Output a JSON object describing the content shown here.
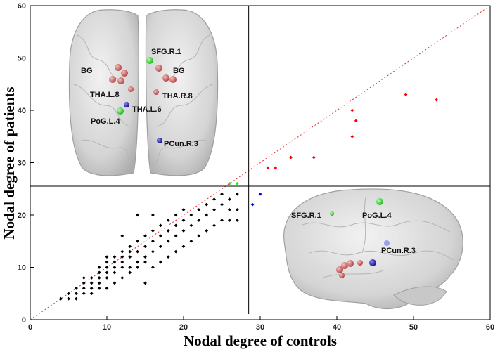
{
  "chart_data": {
    "type": "scatter",
    "x_label": "Nodal degree of controls",
    "y_label": "Nodal degree of patients",
    "xlim": [
      0,
      60
    ],
    "xticks": [
      0,
      10,
      20,
      30,
      40,
      50,
      60
    ],
    "ylim": [
      0,
      60
    ],
    "yticks": [
      0,
      10,
      20,
      30,
      40,
      50,
      60
    ],
    "reference_lines": {
      "x": 28.5,
      "y": 25.5
    },
    "series": [
      {
        "color": "#000000",
        "x": [
          4,
          5,
          5,
          6,
          6,
          6,
          7,
          7,
          7,
          7,
          8,
          8,
          8,
          8,
          9,
          9,
          9,
          9,
          9,
          10,
          10,
          10,
          10,
          10,
          10,
          11,
          11,
          11,
          11,
          11,
          12,
          12,
          12,
          12,
          12,
          13,
          13,
          13,
          13,
          13,
          14,
          14,
          14,
          14,
          15,
          15,
          15,
          15,
          15,
          16,
          16,
          16,
          16,
          17,
          17,
          17,
          17,
          18,
          18,
          18,
          18,
          19,
          19,
          19,
          19,
          20,
          20,
          20,
          20,
          21,
          21,
          21,
          22,
          22,
          22,
          23,
          23,
          23,
          24,
          24,
          24,
          25,
          25,
          25,
          26,
          26,
          26,
          27,
          27,
          27,
          14,
          12,
          16
        ],
        "y": [
          4,
          5,
          4,
          5,
          6,
          4,
          5,
          6,
          7,
          8,
          5,
          6,
          7,
          8,
          6,
          7,
          8,
          9,
          10,
          6,
          8,
          9,
          10,
          11,
          12,
          7,
          9,
          10,
          11,
          12,
          8,
          10,
          11,
          12,
          13,
          9,
          10,
          12,
          13,
          14,
          10,
          11,
          13,
          15,
          7,
          11,
          12,
          14,
          16,
          10,
          13,
          15,
          17,
          11,
          14,
          16,
          18,
          12,
          15,
          17,
          19,
          13,
          16,
          18,
          20,
          14,
          17,
          19,
          21,
          15,
          18,
          20,
          16,
          19,
          21,
          17,
          20,
          22,
          18,
          21,
          23,
          19,
          22,
          24,
          19,
          21,
          23,
          19,
          21,
          24,
          20,
          16,
          20
        ]
      },
      {
        "color": "#ff0000",
        "x": [
          31,
          32,
          34,
          37,
          42,
          42,
          42.5,
          49,
          53
        ],
        "y": [
          29,
          29,
          31,
          31,
          35,
          40,
          38,
          43,
          42
        ]
      },
      {
        "color": "#00ff00",
        "x": [
          26,
          27
        ],
        "y": [
          26,
          26
        ]
      },
      {
        "color": "#0000ff",
        "x": [
          29,
          30
        ],
        "y": [
          22,
          24
        ]
      }
    ],
    "annotations": [
      "BG",
      "SFG.R.1",
      "BG",
      "THA.L.8",
      "THA.R.8",
      "THA.L.6",
      "PoG.L.4",
      "PCun.R.3",
      "SFG.R.1",
      "PoG.L.4",
      "PCun.R.3"
    ]
  }
}
